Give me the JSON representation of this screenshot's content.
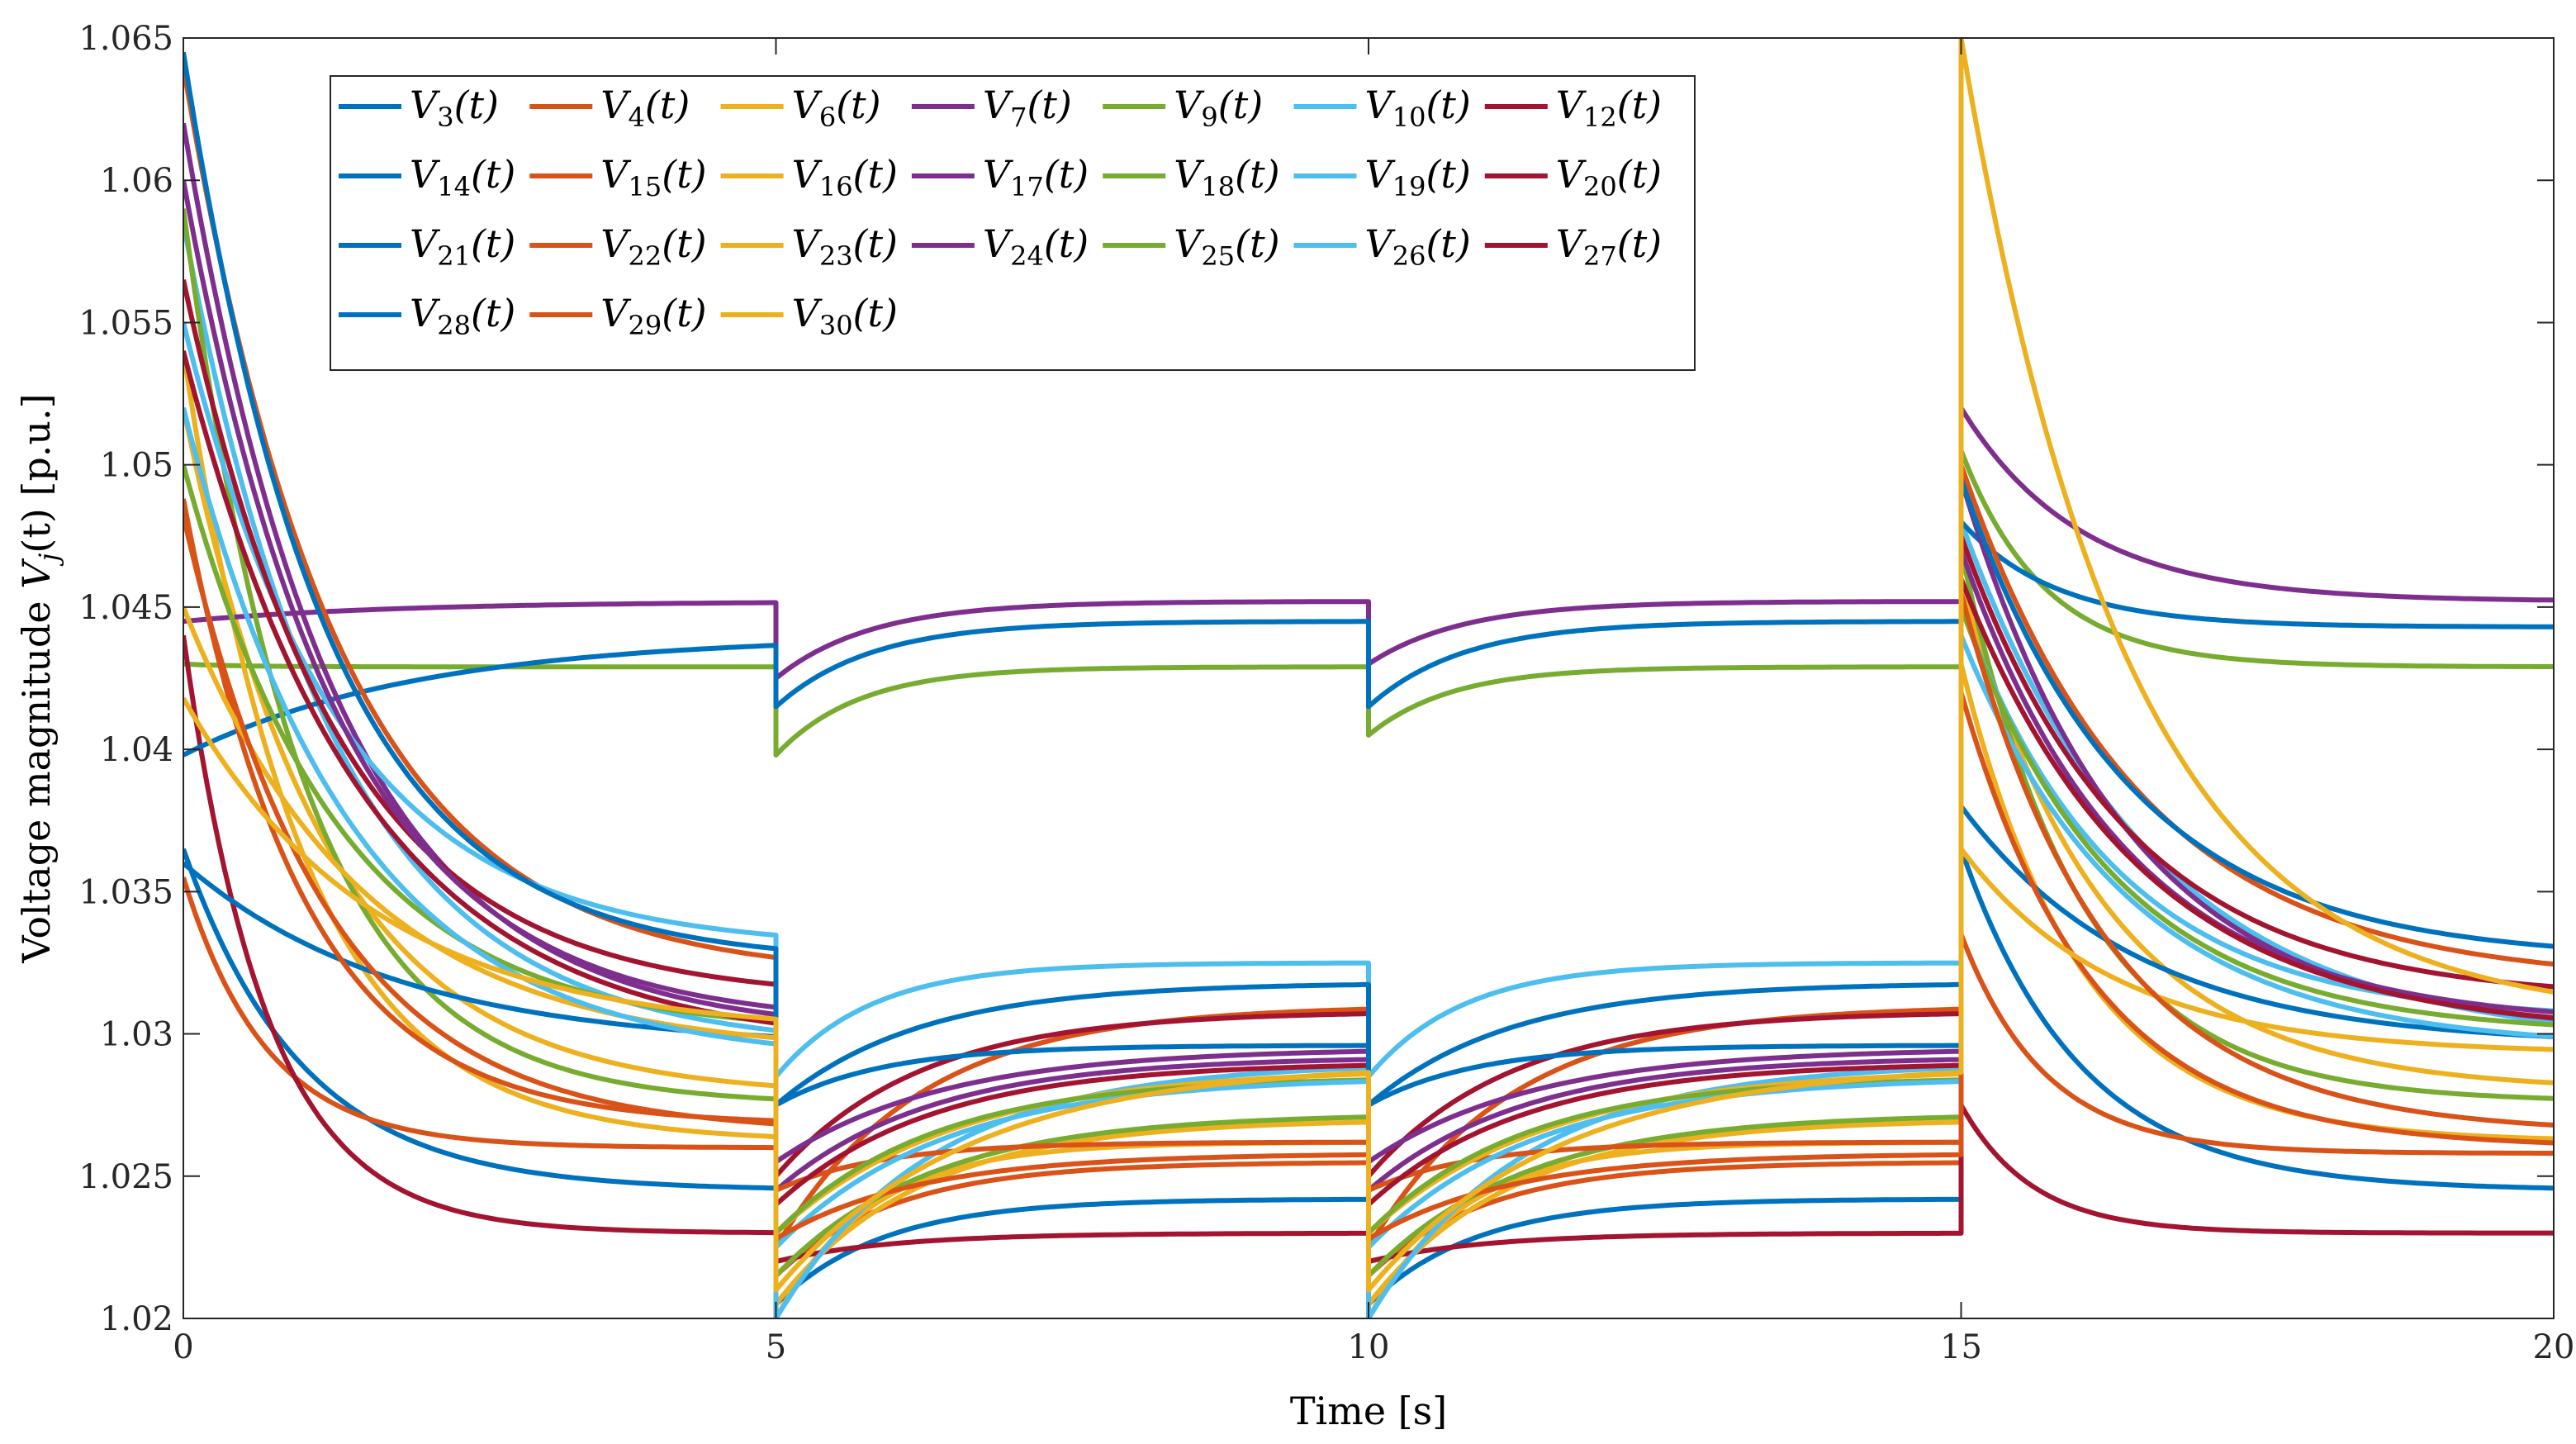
{
  "chart_data": {
    "type": "line",
    "title": "",
    "xlabel": "Time [s]",
    "ylabel": "Voltage magnitude V_j(t) [p.u.]",
    "ylabel_parts": {
      "before": "Voltage magnitude ",
      "var": "V",
      "sub": "j",
      "after": "(t) [p.u.]"
    },
    "xlim": [
      0,
      20
    ],
    "ylim": [
      1.02,
      1.065
    ],
    "xticks": [
      0,
      5,
      10,
      15,
      20
    ],
    "yticks": [
      1.02,
      1.025,
      1.03,
      1.035,
      1.04,
      1.045,
      1.05,
      1.055,
      1.06,
      1.065
    ],
    "xtick_labels": [
      "0",
      "5",
      "10",
      "15",
      "20"
    ],
    "ytick_labels": [
      "1.02",
      "1.025",
      "1.03",
      "1.035",
      "1.04",
      "1.045",
      "1.05",
      "1.055",
      "1.06",
      "1.065"
    ],
    "grid": false,
    "legend_position": "top-left",
    "legend_columns": 7,
    "switch_times": [
      0,
      5,
      10,
      15
    ],
    "x_end": 20,
    "series": [
      {
        "name": "V3(t)",
        "bus": "3",
        "color": "#0072BD",
        "segments": [
          [
            1.0365,
            1.0245,
            1.0
          ],
          [
            1.0205,
            1.0242,
            0.9
          ],
          [
            1.0205,
            1.0242,
            0.9
          ],
          [
            1.0365,
            1.0245,
            1.0
          ]
        ]
      },
      {
        "name": "V4(t)",
        "bus": "4",
        "color": "#D95319",
        "segments": [
          [
            1.0355,
            1.026,
            0.7
          ],
          [
            1.0215,
            1.0255,
            1.0
          ],
          [
            1.0215,
            1.0255,
            1.0
          ],
          [
            1.0335,
            1.0258,
            0.7
          ]
        ]
      },
      {
        "name": "V6(t)",
        "bus": "6",
        "color": "#EDB120",
        "segments": [
          [
            1.052,
            1.0278,
            1.2
          ],
          [
            1.02,
            1.0262,
            0.8
          ],
          [
            1.02,
            1.0262,
            0.8
          ],
          [
            1.046,
            1.028,
            1.2
          ]
        ]
      },
      {
        "name": "V7(t)",
        "bus": "7",
        "color": "#7E2F8E",
        "segments": [
          [
            1.0445,
            1.0452,
            1.8
          ],
          [
            1.0425,
            1.0452,
            0.8
          ],
          [
            1.043,
            1.0452,
            0.8
          ],
          [
            1.052,
            1.0452,
            1.0
          ]
        ]
      },
      {
        "name": "V9(t)",
        "bus": "9",
        "color": "#77AC30",
        "segments": [
          [
            1.043,
            1.0429,
            0.5
          ],
          [
            1.0398,
            1.0429,
            0.7
          ],
          [
            1.0405,
            1.0429,
            0.7
          ],
          [
            1.0505,
            1.0429,
            0.7
          ]
        ]
      },
      {
        "name": "V10(t)",
        "bus": "10",
        "color": "#4DBEEE",
        "segments": [
          [
            1.0585,
            1.0295,
            1.3
          ],
          [
            1.0285,
            1.0325,
            0.8
          ],
          [
            1.0285,
            1.0325,
            0.8
          ],
          [
            1.048,
            1.0296,
            1.6
          ]
        ]
      },
      {
        "name": "V12(t)",
        "bus": "12",
        "color": "#A2142F",
        "segments": [
          [
            1.044,
            1.023,
            0.7
          ],
          [
            1.022,
            1.023,
            1.0
          ],
          [
            1.022,
            1.023,
            1.0
          ],
          [
            1.0275,
            1.023,
            0.6
          ]
        ]
      },
      {
        "name": "V14(t)",
        "bus": "14",
        "color": "#0072BD",
        "segments": [
          [
            1.0398,
            1.044,
            2.0
          ],
          [
            1.0415,
            1.0445,
            0.8
          ],
          [
            1.0415,
            1.0445,
            0.8
          ],
          [
            1.048,
            1.0443,
            0.8
          ]
        ]
      },
      {
        "name": "V15(t)",
        "bus": "15",
        "color": "#D95319",
        "segments": [
          [
            1.064,
            1.032,
            1.3
          ],
          [
            1.0225,
            1.031,
            1.2
          ],
          [
            1.0225,
            1.031,
            1.2
          ],
          [
            1.05,
            1.0318,
            1.5
          ]
        ]
      },
      {
        "name": "V16(t)",
        "bus": "16",
        "color": "#EDB120",
        "segments": [
          [
            1.054,
            1.0262,
            1.0
          ],
          [
            1.0205,
            1.027,
            1.2
          ],
          [
            1.0205,
            1.027,
            1.2
          ],
          [
            1.043,
            1.0262,
            1.0
          ]
        ]
      },
      {
        "name": "V17(t)",
        "bus": "17",
        "color": "#7E2F8E",
        "segments": [
          [
            1.062,
            1.03,
            1.3
          ],
          [
            1.0245,
            1.0292,
            1.3
          ],
          [
            1.0245,
            1.0292,
            1.3
          ],
          [
            1.0495,
            1.03,
            1.4
          ]
        ]
      },
      {
        "name": "V18(t)",
        "bus": "18",
        "color": "#77AC30",
        "segments": [
          [
            1.059,
            1.0275,
            1.0
          ],
          [
            1.0215,
            1.0272,
            1.3
          ],
          [
            1.0215,
            1.0272,
            1.3
          ],
          [
            1.047,
            1.0276,
            1.0
          ]
        ]
      },
      {
        "name": "V19(t)",
        "bus": "19",
        "color": "#4DBEEE",
        "segments": [
          [
            1.055,
            1.033,
            1.3
          ],
          [
            1.02,
            1.029,
            1.3
          ],
          [
            1.02,
            1.029,
            1.3
          ],
          [
            1.045,
            1.0305,
            1.3
          ]
        ]
      },
      {
        "name": "V20(t)",
        "bus": "20",
        "color": "#A2142F",
        "segments": [
          [
            1.0565,
            1.0312,
            1.3
          ],
          [
            1.025,
            1.0308,
            1.2
          ],
          [
            1.025,
            1.0308,
            1.2
          ],
          [
            1.0475,
            1.0312,
            1.4
          ]
        ]
      },
      {
        "name": "V21(t)",
        "bus": "21",
        "color": "#0072BD",
        "segments": [
          [
            1.036,
            1.0295,
            1.8
          ],
          [
            1.0275,
            1.0296,
            0.9
          ],
          [
            1.0275,
            1.0296,
            0.9
          ],
          [
            1.038,
            1.0296,
            1.5
          ]
        ]
      },
      {
        "name": "V22(t)",
        "bus": "22",
        "color": "#D95319",
        "segments": [
          [
            1.0488,
            1.0268,
            1.0
          ],
          [
            1.0245,
            1.0262,
            0.9
          ],
          [
            1.0245,
            1.0262,
            0.9
          ],
          [
            1.042,
            1.026,
            1.1
          ]
        ]
      },
      {
        "name": "V23(t)",
        "bus": "23",
        "color": "#EDB120",
        "segments": [
          [
            1.045,
            1.0293,
            1.5
          ],
          [
            1.023,
            1.0288,
            1.5
          ],
          [
            1.023,
            1.0288,
            1.5
          ],
          [
            1.0365,
            1.0293,
            1.3
          ]
        ]
      },
      {
        "name": "V24(t)",
        "bus": "24",
        "color": "#7E2F8E",
        "segments": [
          [
            1.06,
            1.0303,
            1.3
          ],
          [
            1.0255,
            1.0295,
            1.4
          ],
          [
            1.0255,
            1.0295,
            1.4
          ],
          [
            1.047,
            1.0303,
            1.4
          ]
        ]
      },
      {
        "name": "V25(t)",
        "bus": "25",
        "color": "#77AC30",
        "segments": [
          [
            1.05,
            1.03,
            1.3
          ],
          [
            1.023,
            1.0285,
            1.3
          ],
          [
            1.023,
            1.0285,
            1.3
          ],
          [
            1.045,
            1.03,
            1.3
          ]
        ]
      },
      {
        "name": "V26(t)",
        "bus": "26",
        "color": "#4DBEEE",
        "segments": [
          [
            1.052,
            1.029,
            1.4
          ],
          [
            1.0225,
            1.0285,
            1.4
          ],
          [
            1.0225,
            1.0285,
            1.4
          ],
          [
            1.044,
            1.0295,
            1.4
          ]
        ]
      },
      {
        "name": "V27(t)",
        "bus": "27",
        "color": "#A2142F",
        "segments": [
          [
            1.054,
            1.0295,
            1.5
          ],
          [
            1.024,
            1.029,
            1.3
          ],
          [
            1.024,
            1.029,
            1.3
          ],
          [
            1.046,
            1.03,
            1.5
          ]
        ]
      },
      {
        "name": "V28(t)",
        "bus": "28",
        "color": "#0072BD",
        "segments": [
          [
            1.0645,
            1.0325,
            1.2
          ],
          [
            1.0275,
            1.0318,
            1.2
          ],
          [
            1.0275,
            1.0318,
            1.2
          ],
          [
            1.0495,
            1.0326,
            1.4
          ]
        ]
      },
      {
        "name": "V29(t)",
        "bus": "29",
        "color": "#D95319",
        "segments": [
          [
            1.0482,
            1.0265,
            1.2
          ],
          [
            1.0228,
            1.0258,
            1.2
          ],
          [
            1.0228,
            1.0258,
            1.2
          ],
          [
            1.0455,
            1.0265,
            1.2
          ]
        ]
      },
      {
        "name": "V30(t)",
        "bus": "30",
        "color": "#EDB120",
        "segments": [
          [
            1.0418,
            1.03,
            1.6
          ],
          [
            1.021,
            1.029,
            1.6
          ],
          [
            1.021,
            1.029,
            1.6
          ],
          [
            1.065,
            1.0305,
            1.4
          ]
        ]
      }
    ]
  }
}
